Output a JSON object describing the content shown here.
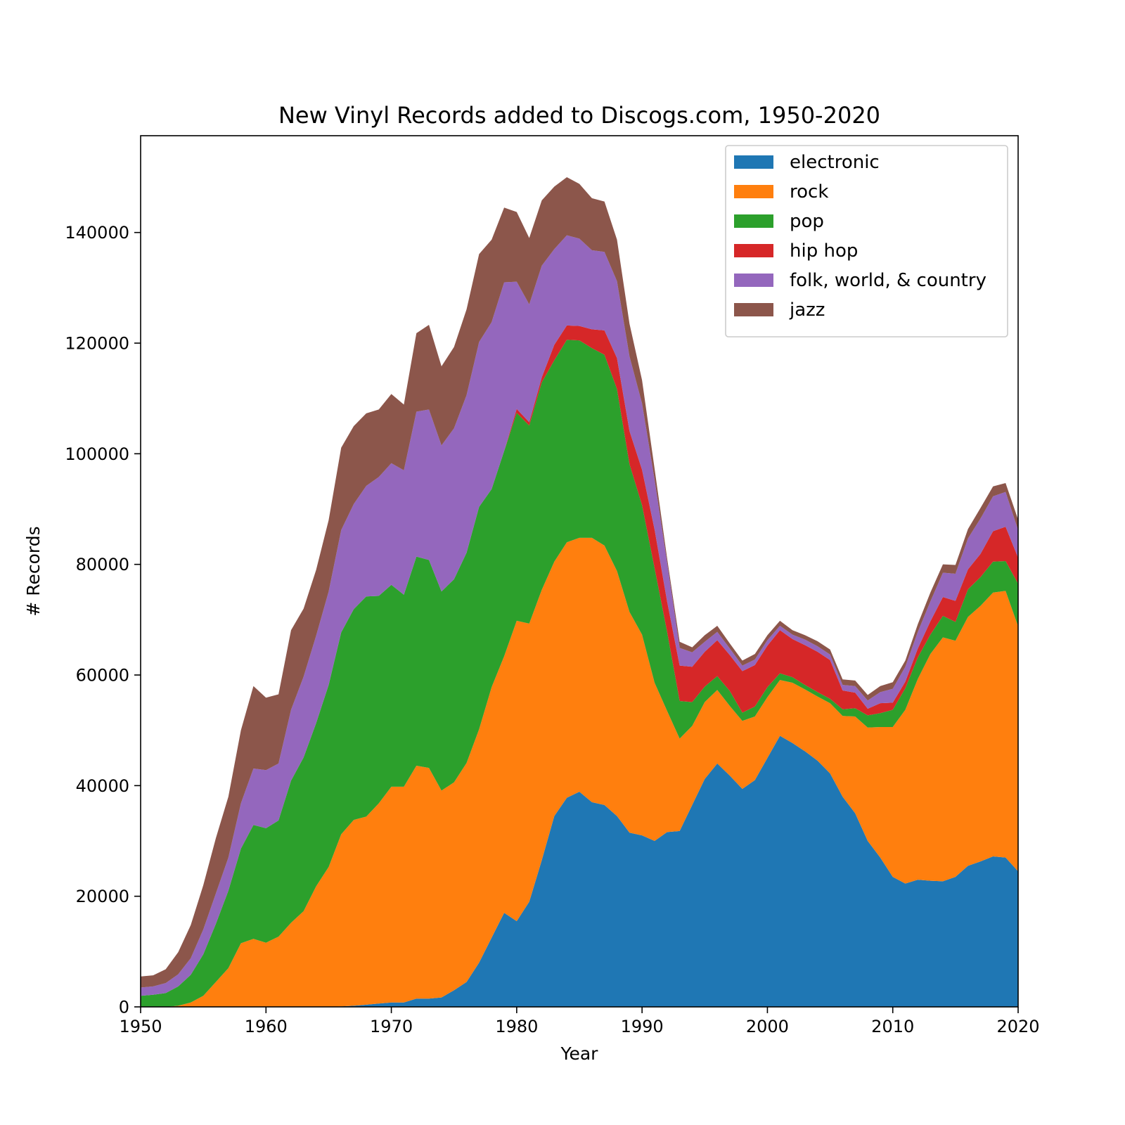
{
  "chart_data": {
    "type": "area",
    "stacked": true,
    "title": "New Vinyl Records added to Discogs.com, 1950-2020",
    "xlabel": "Year",
    "ylabel": "# Records",
    "xlim": [
      1950,
      2020
    ],
    "ylim": [
      0,
      157500
    ],
    "xticks": [
      1950,
      1960,
      1970,
      1980,
      1990,
      2000,
      2010,
      2020
    ],
    "yticks": [
      0,
      20000,
      40000,
      60000,
      80000,
      100000,
      120000,
      140000
    ],
    "grid": false,
    "legend_position": "top-right",
    "x": [
      1950,
      1951,
      1952,
      1953,
      1954,
      1955,
      1956,
      1957,
      1958,
      1959,
      1960,
      1961,
      1962,
      1963,
      1964,
      1965,
      1966,
      1967,
      1968,
      1969,
      1970,
      1971,
      1972,
      1973,
      1974,
      1975,
      1976,
      1977,
      1978,
      1979,
      1980,
      1981,
      1982,
      1983,
      1984,
      1985,
      1986,
      1987,
      1988,
      1989,
      1990,
      1991,
      1992,
      1993,
      1994,
      1995,
      1996,
      1997,
      1998,
      1999,
      2000,
      2001,
      2002,
      2003,
      2004,
      2005,
      2006,
      2007,
      2008,
      2009,
      2010,
      2011,
      2012,
      2013,
      2014,
      2015,
      2016,
      2017,
      2018,
      2019,
      2020
    ],
    "series": [
      {
        "name": "electronic",
        "color": "#1f77b4",
        "values": [
          0,
          0,
          0,
          0,
          0,
          0,
          0,
          0,
          0,
          0,
          0,
          0,
          0,
          0,
          0,
          0,
          100,
          200,
          400,
          600,
          800,
          800,
          1500,
          1500,
          1700,
          3000,
          4500,
          8000,
          12500,
          17000,
          15500,
          19000,
          26500,
          34500,
          37800,
          38900,
          37000,
          36500,
          34500,
          31500,
          31000,
          30000,
          31600,
          31800,
          36500,
          41200,
          44000,
          41800,
          39400,
          41000,
          45000,
          49000,
          47700,
          46200,
          44500,
          42200,
          38000,
          35000,
          30000,
          27000,
          23500,
          22300,
          23000,
          22800,
          22700,
          23500,
          25500,
          26300,
          27200,
          27000,
          24500
        ]
      },
      {
        "name": "rock",
        "color": "#ff7f0e",
        "values": [
          0,
          0,
          0,
          200,
          800,
          2000,
          4500,
          7000,
          11500,
          12300,
          11600,
          12700,
          15200,
          17300,
          21800,
          25300,
          31100,
          33600,
          34000,
          36200,
          39000,
          39000,
          42100,
          41700,
          37400,
          37600,
          39600,
          42200,
          45300,
          46400,
          54300,
          50300,
          48900,
          46000,
          46200,
          45900,
          47800,
          46900,
          44300,
          39900,
          36300,
          28600,
          21900,
          16700,
          14300,
          13900,
          13300,
          12600,
          12300,
          11500,
          11000,
          10100,
          10900,
          11200,
          11600,
          12700,
          14600,
          17500,
          20500,
          23600,
          27100,
          31400,
          36300,
          41000,
          44100,
          42700,
          45000,
          46200,
          47700,
          48200,
          44300
        ]
      },
      {
        "name": "pop",
        "color": "#2ca02c",
        "values": [
          2000,
          2200,
          2500,
          3500,
          5000,
          7500,
          10500,
          14000,
          17100,
          20600,
          20700,
          21000,
          25700,
          27800,
          29500,
          32900,
          36500,
          38100,
          39800,
          37500,
          36500,
          34700,
          37800,
          37600,
          36000,
          36700,
          38000,
          40200,
          35800,
          37100,
          37600,
          35800,
          37500,
          36400,
          36600,
          35700,
          34300,
          34500,
          32900,
          26700,
          23400,
          20700,
          14300,
          6800,
          4300,
          2800,
          2500,
          2700,
          1500,
          1800,
          1800,
          1200,
          1000,
          800,
          800,
          800,
          1200,
          1500,
          2200,
          2500,
          3100,
          3900,
          3900,
          3500,
          3900,
          3400,
          5000,
          5200,
          5600,
          5400,
          7700
        ]
      },
      {
        "name": "hip hop",
        "color": "#d62728",
        "values": [
          0,
          0,
          0,
          0,
          0,
          0,
          0,
          0,
          0,
          0,
          0,
          0,
          0,
          0,
          0,
          0,
          0,
          0,
          0,
          0,
          0,
          0,
          0,
          0,
          0,
          0,
          0,
          0,
          0,
          0,
          700,
          600,
          900,
          2800,
          2600,
          2600,
          3400,
          4400,
          5600,
          6000,
          6400,
          7000,
          5500,
          6400,
          6400,
          6300,
          6500,
          6500,
          7500,
          7500,
          7500,
          7800,
          6900,
          7200,
          7300,
          7000,
          3400,
          2800,
          1200,
          1800,
          1300,
          1200,
          1600,
          2400,
          3400,
          3800,
          3600,
          4200,
          5500,
          6200,
          4700
        ]
      },
      {
        "name": "folk, world, & country",
        "color": "#9467bd",
        "values": [
          1500,
          1500,
          1800,
          2200,
          3000,
          4500,
          5500,
          6000,
          8200,
          10200,
          10500,
          10300,
          12800,
          14600,
          15800,
          16900,
          18500,
          19000,
          20000,
          21500,
          22000,
          22500,
          26200,
          27200,
          26400,
          27300,
          28500,
          29800,
          30200,
          30500,
          23000,
          21300,
          20200,
          17300,
          16300,
          15800,
          14300,
          14200,
          13900,
          13500,
          12000,
          9000,
          7000,
          3200,
          2600,
          1800,
          1500,
          1200,
          1000,
          1000,
          1000,
          800,
          800,
          1000,
          1000,
          1000,
          1000,
          1200,
          1500,
          2000,
          2500,
          2700,
          3000,
          3600,
          4400,
          4900,
          5600,
          6400,
          6300,
          6300,
          5000
        ]
      },
      {
        "name": "jazz",
        "color": "#8c564b",
        "values": [
          2000,
          2000,
          2500,
          4000,
          6000,
          8000,
          10000,
          11000,
          13200,
          14900,
          13100,
          12500,
          14400,
          12300,
          11900,
          12900,
          14900,
          14100,
          13100,
          12200,
          12500,
          11900,
          14200,
          15300,
          14300,
          14700,
          15500,
          15900,
          14900,
          13500,
          12600,
          12000,
          11800,
          11300,
          10500,
          9900,
          9400,
          9100,
          7500,
          5900,
          4200,
          2000,
          800,
          1100,
          900,
          1200,
          1100,
          900,
          900,
          1000,
          900,
          900,
          800,
          800,
          900,
          900,
          1000,
          1000,
          1000,
          1100,
          1200,
          1100,
          1400,
          1600,
          1500,
          1600,
          1700,
          1900,
          1800,
          1600,
          1900
        ]
      }
    ]
  }
}
